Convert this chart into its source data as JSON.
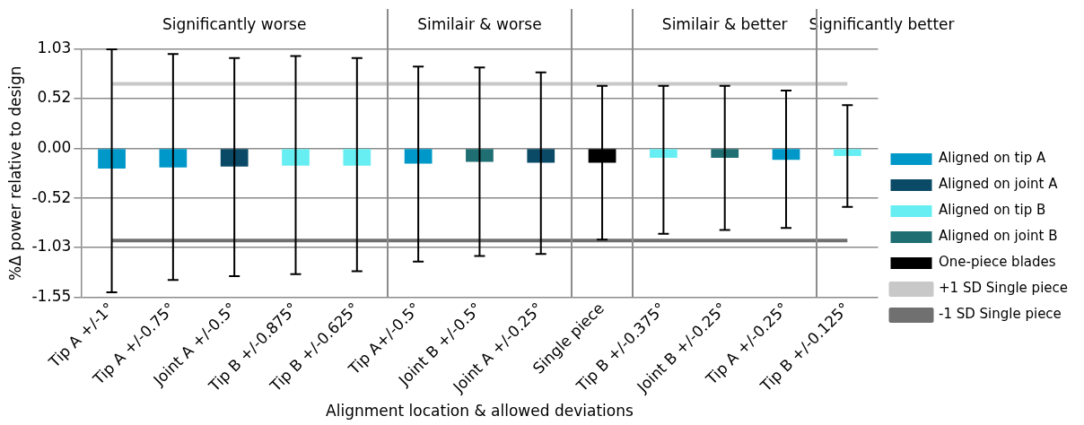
{
  "chart_data": {
    "type": "bar",
    "xlabel": "Alignment location & allowed deviations",
    "ylabel": "%Δ power relative to design",
    "categories": [
      "Tip A +/-1°",
      "Tip A +/-0.75°",
      "Joint A +/-0.5°",
      "Tip B +/-0.875°",
      "Tip B +/-0.625°",
      "Tip A+/-0.5°",
      "Joint B +/-0.5°",
      "Joint A +/-0.25°",
      "Single piece",
      "Tip B +/-0.375°",
      "Joint B +/-0.25°",
      "Tip A +/-0.25°",
      "Tip B +/-0.125°"
    ],
    "series": [
      {
        "name": "Aligned on tip A",
        "color": "#0098c8",
        "values": [
          -0.21,
          -0.2,
          null,
          null,
          null,
          -0.16,
          null,
          null,
          null,
          null,
          null,
          -0.12,
          null
        ],
        "errors": [
          [
            -1.5,
            1.03
          ],
          [
            -1.37,
            0.98
          ],
          null,
          null,
          null,
          [
            -1.18,
            0.85
          ],
          null,
          null,
          null,
          null,
          null,
          [
            -0.83,
            0.6
          ],
          null
        ]
      },
      {
        "name": "Aligned on joint A",
        "color": "#0a4a66",
        "values": [
          null,
          null,
          -0.19,
          null,
          null,
          null,
          null,
          -0.15,
          null,
          null,
          null,
          null,
          null
        ],
        "errors": [
          null,
          null,
          [
            -1.33,
            0.94
          ],
          null,
          null,
          null,
          null,
          [
            -1.1,
            0.79
          ],
          null,
          null,
          null,
          null,
          null
        ]
      },
      {
        "name": "Aligned on tip B",
        "color": "#66eef2",
        "values": [
          null,
          null,
          null,
          -0.18,
          -0.18,
          null,
          null,
          null,
          null,
          -0.1,
          null,
          null,
          -0.08
        ],
        "errors": [
          null,
          null,
          null,
          [
            -1.31,
            0.96
          ],
          [
            -1.28,
            0.94
          ],
          null,
          null,
          null,
          null,
          [
            -0.89,
            0.65
          ],
          null,
          null,
          [
            -0.61,
            0.45
          ]
        ]
      },
      {
        "name": "Aligned on joint B",
        "color": "#1e6e72",
        "values": [
          null,
          null,
          null,
          null,
          null,
          null,
          -0.14,
          null,
          null,
          null,
          -0.1,
          null,
          null
        ],
        "errors": [
          null,
          null,
          null,
          null,
          null,
          null,
          [
            -1.12,
            0.84
          ],
          null,
          null,
          null,
          [
            -0.85,
            0.65
          ],
          null,
          null
        ]
      },
      {
        "name": "One-piece blades",
        "color": "#000000",
        "values": [
          null,
          null,
          null,
          null,
          null,
          null,
          null,
          null,
          -0.15,
          null,
          null,
          null,
          null
        ],
        "errors": [
          null,
          null,
          null,
          null,
          null,
          null,
          null,
          null,
          [
            -0.95,
            0.65
          ],
          null,
          null,
          null,
          null
        ]
      },
      {
        "name": "+1 SD Single piece",
        "type": "line",
        "color": "#c8c8c8",
        "values": [
          0.67,
          0.67,
          0.67,
          0.67,
          0.67,
          0.67,
          0.67,
          0.67,
          0.67,
          0.67,
          0.67,
          0.67,
          0.67
        ]
      },
      {
        "name": "-1 SD Single piece",
        "type": "line",
        "color": "#707070",
        "values": [
          -0.96,
          -0.96,
          -0.96,
          -0.96,
          -0.96,
          -0.96,
          -0.96,
          -0.96,
          -0.96,
          -0.96,
          -0.96,
          -0.96,
          -0.96
        ]
      }
    ],
    "ylim": [
      -1.55,
      1.03
    ],
    "yticks": [
      {
        "value": -1.55,
        "label": "-1.55"
      },
      {
        "value": -1.03,
        "label": "-1.03"
      },
      {
        "value": -0.52,
        "label": "-0.52"
      },
      {
        "value": 0,
        "label": "0.00"
      },
      {
        "value": 0.52,
        "label": "0.52"
      },
      {
        "value": 1.03,
        "label": "1.03"
      }
    ],
    "grid": "y",
    "legend": "right",
    "marker": "none",
    "annotations": [
      "Significantly worse",
      "Similair & worse",
      "Similair & better",
      "Significantly better"
    ]
  }
}
